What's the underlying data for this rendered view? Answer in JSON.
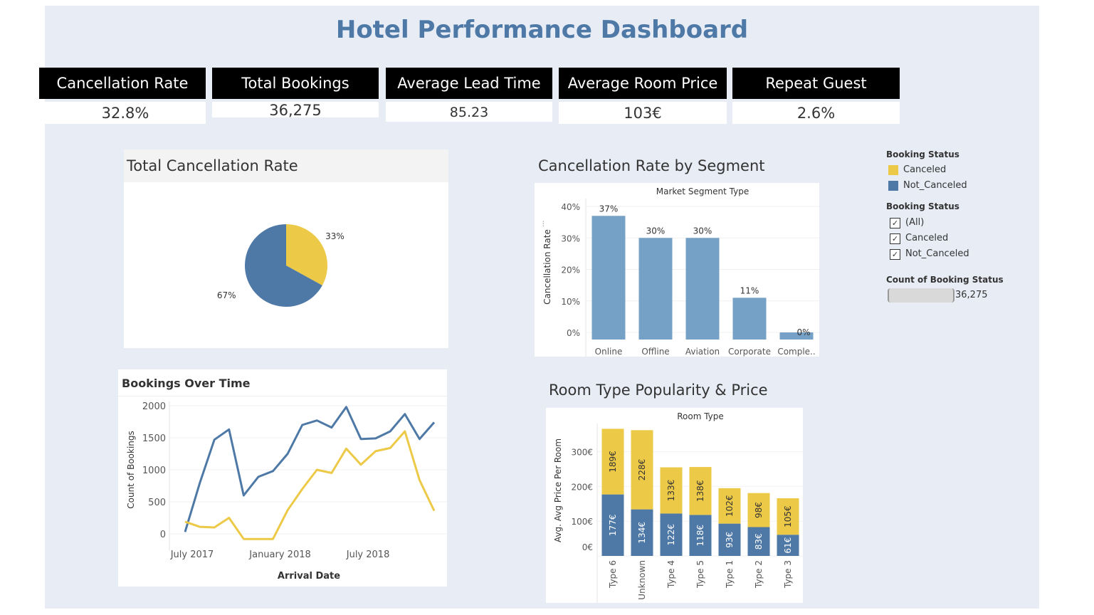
{
  "title": "Hotel Performance Dashboard",
  "kpis": [
    {
      "label": "Cancellation Rate",
      "value": "32.8%"
    },
    {
      "label": "Total Bookings",
      "value": "36,275"
    },
    {
      "label": "Average Lead Time",
      "value": "85.23"
    },
    {
      "label": "Average Room Price",
      "value": "103€"
    },
    {
      "label": "Repeat Guest",
      "value": "2.6%"
    }
  ],
  "colors": {
    "canceled": "#edc948",
    "not_canceled": "#4e79a7",
    "segment_bar": "#76a1c7",
    "background": "#e7ecf5"
  },
  "panels": {
    "pie_title": "Total Cancellation Rate",
    "segment_title": "Cancellation Rate by Segment",
    "time_title": "Bookings Over Time",
    "room_title": "Room Type Popularity & Price"
  },
  "legend": {
    "color_title": "Booking Status",
    "color_items": [
      "Canceled",
      "Not_Canceled"
    ],
    "filter_title": "Booking Status",
    "filter_items": [
      "(All)",
      "Canceled",
      "Not_Canceled"
    ],
    "count_title": "Count of Booking Status",
    "count_value": "36,275"
  },
  "chart_data": [
    {
      "type": "pie",
      "title": "Total Cancellation Rate",
      "slices": [
        {
          "name": "Canceled",
          "value": 33,
          "label": "33%"
        },
        {
          "name": "Not_Canceled",
          "value": 67,
          "label": "67%"
        }
      ]
    },
    {
      "type": "bar",
      "title": "Cancellation Rate by Segment",
      "header": "Market Segment Type",
      "ylabel": "Cancellation Rate",
      "categories": [
        "Online",
        "Offline",
        "Aviation",
        "Corporate",
        "Comple.."
      ],
      "values": [
        37,
        30,
        30,
        11,
        0
      ],
      "labels": [
        "37%",
        "30%",
        "30%",
        "11%",
        "0%"
      ],
      "ylim": [
        0,
        40
      ],
      "yticks": [
        "0%",
        "10%",
        "20%",
        "30%",
        "40%"
      ]
    },
    {
      "type": "line",
      "title": "Bookings Over Time",
      "xlabel": "Arrival Date",
      "ylabel": "Count of Bookings",
      "xticks": [
        "July 2017",
        "January 2018",
        "July 2018"
      ],
      "yticks": [
        "0",
        "500",
        "1000",
        "1500",
        "2000"
      ],
      "ylim": [
        0,
        2000
      ],
      "x": [
        "2017-07",
        "2017-08",
        "2017-09",
        "2017-10",
        "2017-11",
        "2017-12",
        "2018-01",
        "2018-02",
        "2018-03",
        "2018-04",
        "2018-05",
        "2018-06",
        "2018-07",
        "2018-08",
        "2018-09",
        "2018-10",
        "2018-11",
        "2018-12"
      ],
      "series": [
        {
          "name": "Not_Canceled",
          "values": [
            30,
            790,
            1470,
            1630,
            600,
            890,
            980,
            1250,
            1700,
            1770,
            1660,
            1980,
            1480,
            1490,
            1600,
            1870,
            1480,
            1740
          ]
        },
        {
          "name": "Canceled",
          "values": [
            190,
            110,
            100,
            250,
            -80,
            -80,
            -80,
            370,
            700,
            1000,
            950,
            1330,
            1080,
            1290,
            1340,
            1600,
            840,
            360
          ]
        }
      ]
    },
    {
      "type": "bar",
      "stacked": true,
      "title": "Room Type Popularity & Price",
      "header": "Room Type",
      "ylabel": "Avg. Avg Price Per Room",
      "categories": [
        "Type 6",
        "Unknown",
        "Type 4",
        "Type 5",
        "Type 1",
        "Type 2",
        "Type 3"
      ],
      "yticks": [
        "0€",
        "100€",
        "200€",
        "300€"
      ],
      "ylim": [
        0,
        380
      ],
      "series": [
        {
          "name": "Not_Canceled",
          "values": [
            177,
            134,
            122,
            118,
            93,
            83,
            61
          ],
          "labels": [
            "177€",
            "134€",
            "122€",
            "118€",
            "93€",
            "83€",
            "61€"
          ]
        },
        {
          "name": "Canceled",
          "values": [
            189,
            228,
            133,
            138,
            102,
            98,
            105
          ],
          "labels": [
            "189€",
            "228€",
            "133€",
            "138€",
            "102€",
            "98€",
            "105€"
          ]
        }
      ]
    }
  ]
}
